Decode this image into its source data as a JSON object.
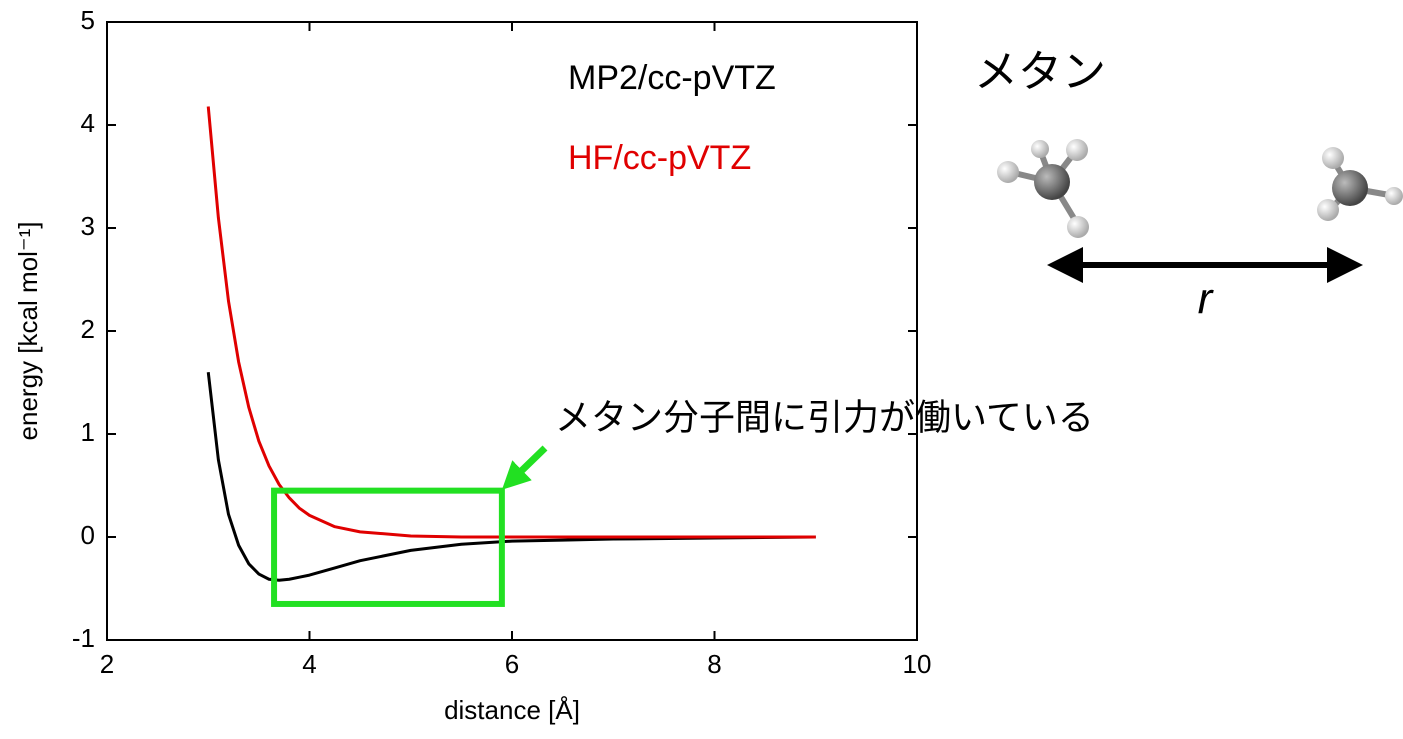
{
  "chart_data": {
    "type": "line",
    "xlabel": "distance [Å]",
    "ylabel": "energy [kcal mol⁻¹]",
    "x": [
      3,
      3.1,
      3.2,
      3.3,
      3.4,
      3.5,
      3.6,
      3.7,
      3.8,
      3.9,
      4.0,
      4.25,
      4.5,
      5,
      5.5,
      6,
      6.5,
      7,
      8,
      9
    ],
    "series": [
      {
        "name": "MP2/cc-pVTZ",
        "color": "#000000",
        "values": [
          1.6,
          0.75,
          0.22,
          -0.08,
          -0.26,
          -0.36,
          -0.41,
          -0.42,
          -0.41,
          -0.39,
          -0.37,
          -0.3,
          -0.23,
          -0.13,
          -0.07,
          -0.04,
          -0.03,
          -0.02,
          -0.01,
          0
        ]
      },
      {
        "name": "HF/cc-pVTZ",
        "color": "#e00000",
        "values": [
          4.18,
          3.1,
          2.29,
          1.7,
          1.26,
          0.93,
          0.69,
          0.51,
          0.38,
          0.28,
          0.21,
          0.1,
          0.05,
          0.01,
          0,
          0,
          0,
          0,
          0,
          0
        ]
      }
    ],
    "xlim": [
      2,
      10
    ],
    "xticks": [
      2,
      4,
      6,
      8,
      10
    ],
    "ylim": [
      -1,
      5
    ],
    "yticks": [
      -1,
      0,
      1,
      2,
      3,
      4,
      5
    ],
    "highlight_box": {
      "x": [
        3.65,
        5.9
      ],
      "y": [
        -0.65,
        0.45
      ],
      "color": "#22e022"
    },
    "annotation": "メタン分子間に引力が働いている",
    "molecule_title": "メタン",
    "distance_label": "r"
  }
}
